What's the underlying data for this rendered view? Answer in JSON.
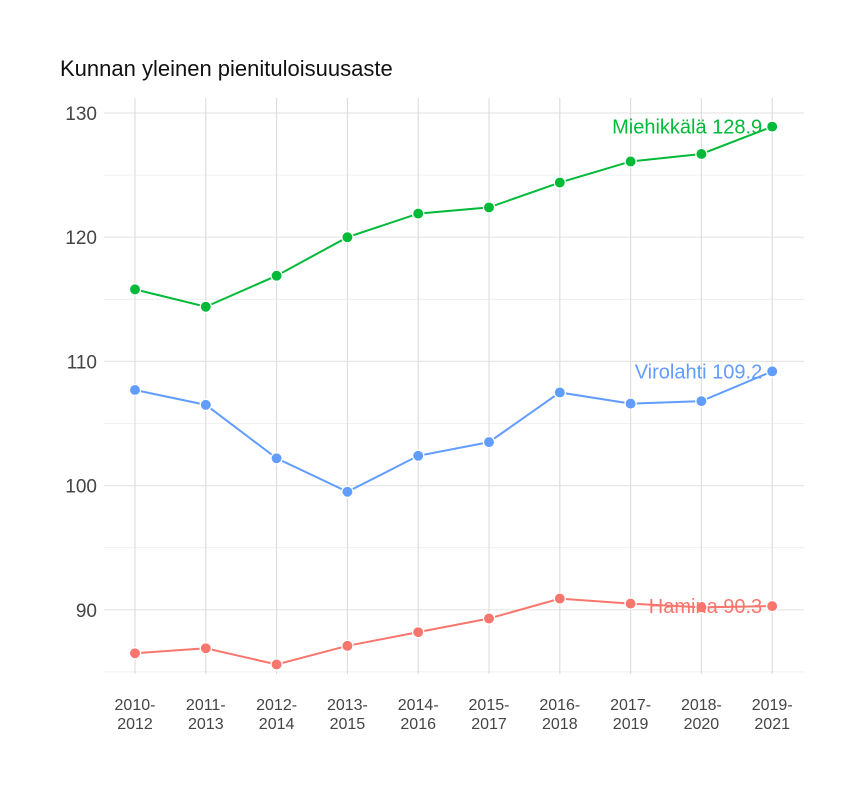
{
  "chart_data": {
    "type": "line",
    "title": "Kunnan yleinen pienituloisuusaste",
    "xlabel": "",
    "ylabel": "",
    "categories": [
      "2010-2012",
      "2011-2013",
      "2012-2014",
      "2013-2015",
      "2014-2016",
      "2015-2017",
      "2016-2018",
      "2017-2019",
      "2018-2020",
      "2019-2021"
    ],
    "category_lines": [
      [
        "2010-",
        "2012"
      ],
      [
        "2011-",
        "2013"
      ],
      [
        "2012-",
        "2014"
      ],
      [
        "2013-",
        "2015"
      ],
      [
        "2014-",
        "2016"
      ],
      [
        "2015-",
        "2017"
      ],
      [
        "2016-",
        "2018"
      ],
      [
        "2017-",
        "2019"
      ],
      [
        "2018-",
        "2020"
      ],
      [
        "2019-",
        "2021"
      ]
    ],
    "ylim": [
      85,
      130
    ],
    "yticks": [
      90,
      100,
      110,
      120,
      130
    ],
    "grid": true,
    "legend": "none",
    "series": [
      {
        "name": "Miehikkälä",
        "color": "#00ba38",
        "values": [
          115.8,
          114.4,
          116.9,
          120.0,
          121.9,
          122.4,
          124.4,
          126.1,
          126.7,
          128.9
        ],
        "end_label": "Miehikkälä 128.9"
      },
      {
        "name": "Virolahti",
        "color": "#619cff",
        "values": [
          107.7,
          106.5,
          102.2,
          99.5,
          102.4,
          103.5,
          107.5,
          106.6,
          106.8,
          109.2
        ],
        "end_label": "Virolahti 109.2"
      },
      {
        "name": "Hamina",
        "color": "#f8766d",
        "values": [
          86.5,
          86.9,
          85.6,
          87.1,
          88.2,
          89.3,
          90.9,
          90.5,
          90.2,
          90.3
        ],
        "end_label": "Hamina 90.3"
      }
    ]
  }
}
